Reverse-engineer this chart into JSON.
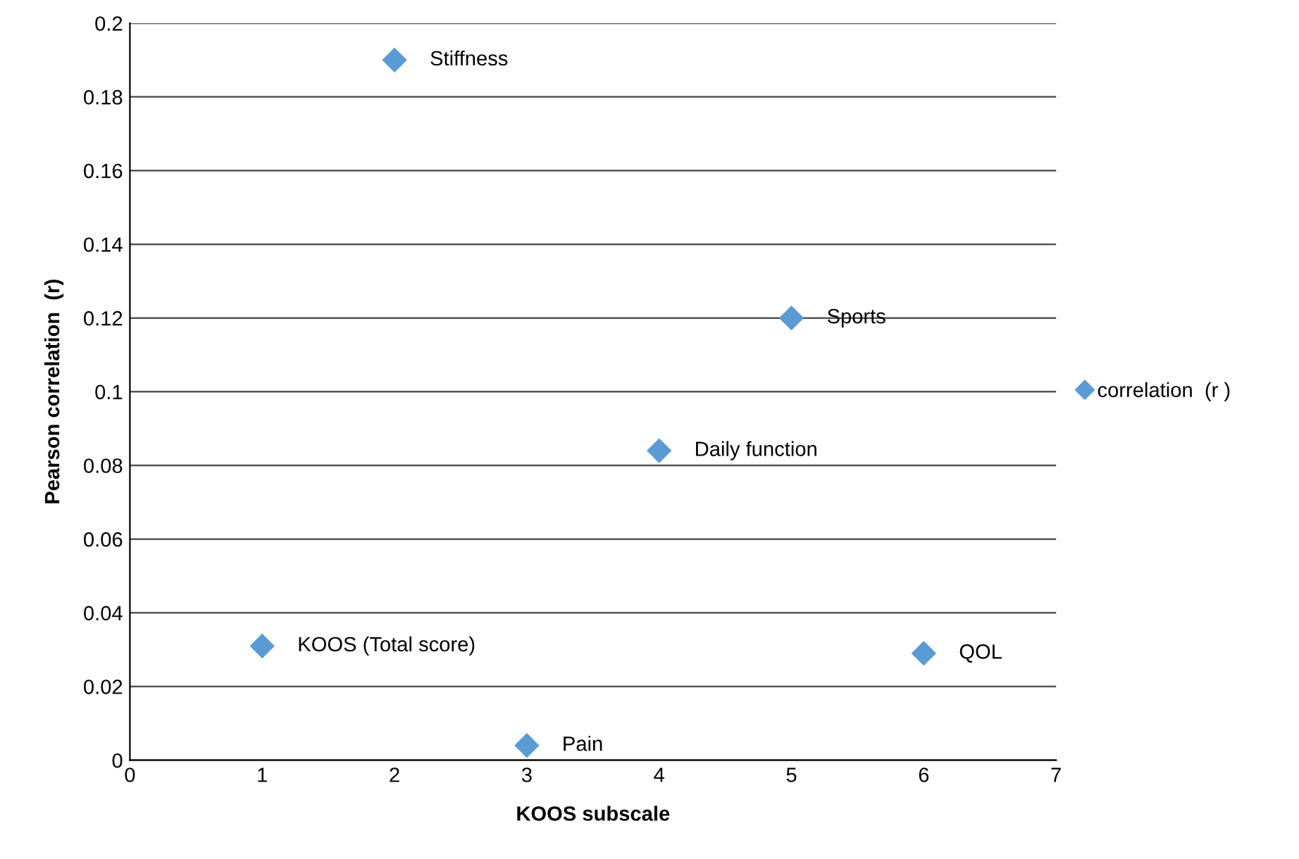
{
  "chart_data": {
    "type": "scatter",
    "xlabel": "KOOS subscale",
    "ylabel": "Pearson correlation  (r)",
    "x": [
      1,
      2,
      3,
      4,
      5,
      6
    ],
    "series": [
      {
        "name": "correlation  (r )",
        "color": "#5b9bd5",
        "values": [
          0.031,
          0.19,
          0.004,
          0.084,
          0.12,
          0.029
        ]
      }
    ],
    "xlim": [
      0,
      7
    ],
    "xticks": [
      0,
      1,
      2,
      3,
      4,
      5,
      6,
      7
    ],
    "ylim": [
      0,
      0.2
    ],
    "yticks": [
      0,
      {
        "value": 0.02,
        "label": "0.02"
      },
      {
        "value": 0.04,
        "label": "0.04"
      },
      {
        "value": 0.06,
        "label": "0.06"
      },
      {
        "value": 0.08,
        "label": "0.08"
      },
      {
        "value": 0.1,
        "label": "0.1"
      },
      {
        "value": 0.12,
        "label": "0.12"
      },
      {
        "value": 0.14,
        "label": "0.14"
      },
      {
        "value": 0.16,
        "label": "0.16"
      },
      {
        "value": 0.18,
        "label": "0.18"
      },
      {
        "value": 0.2,
        "label": "0.2"
      }
    ],
    "grid": "y",
    "legend": "right",
    "marker": "diamond",
    "annotations": [
      {
        "text": "KOOS (Total score)",
        "x": 1,
        "y": 0.031
      },
      {
        "text": "Stiffness",
        "x": 2,
        "y": 0.19
      },
      {
        "text": "Pain",
        "x": 3,
        "y": 0.004
      },
      {
        "text": "Daily function",
        "x": 4,
        "y": 0.084
      },
      {
        "text": "Sports",
        "x": 5,
        "y": 0.12
      },
      {
        "text": "QOL",
        "x": 6,
        "y": 0.029
      }
    ]
  }
}
